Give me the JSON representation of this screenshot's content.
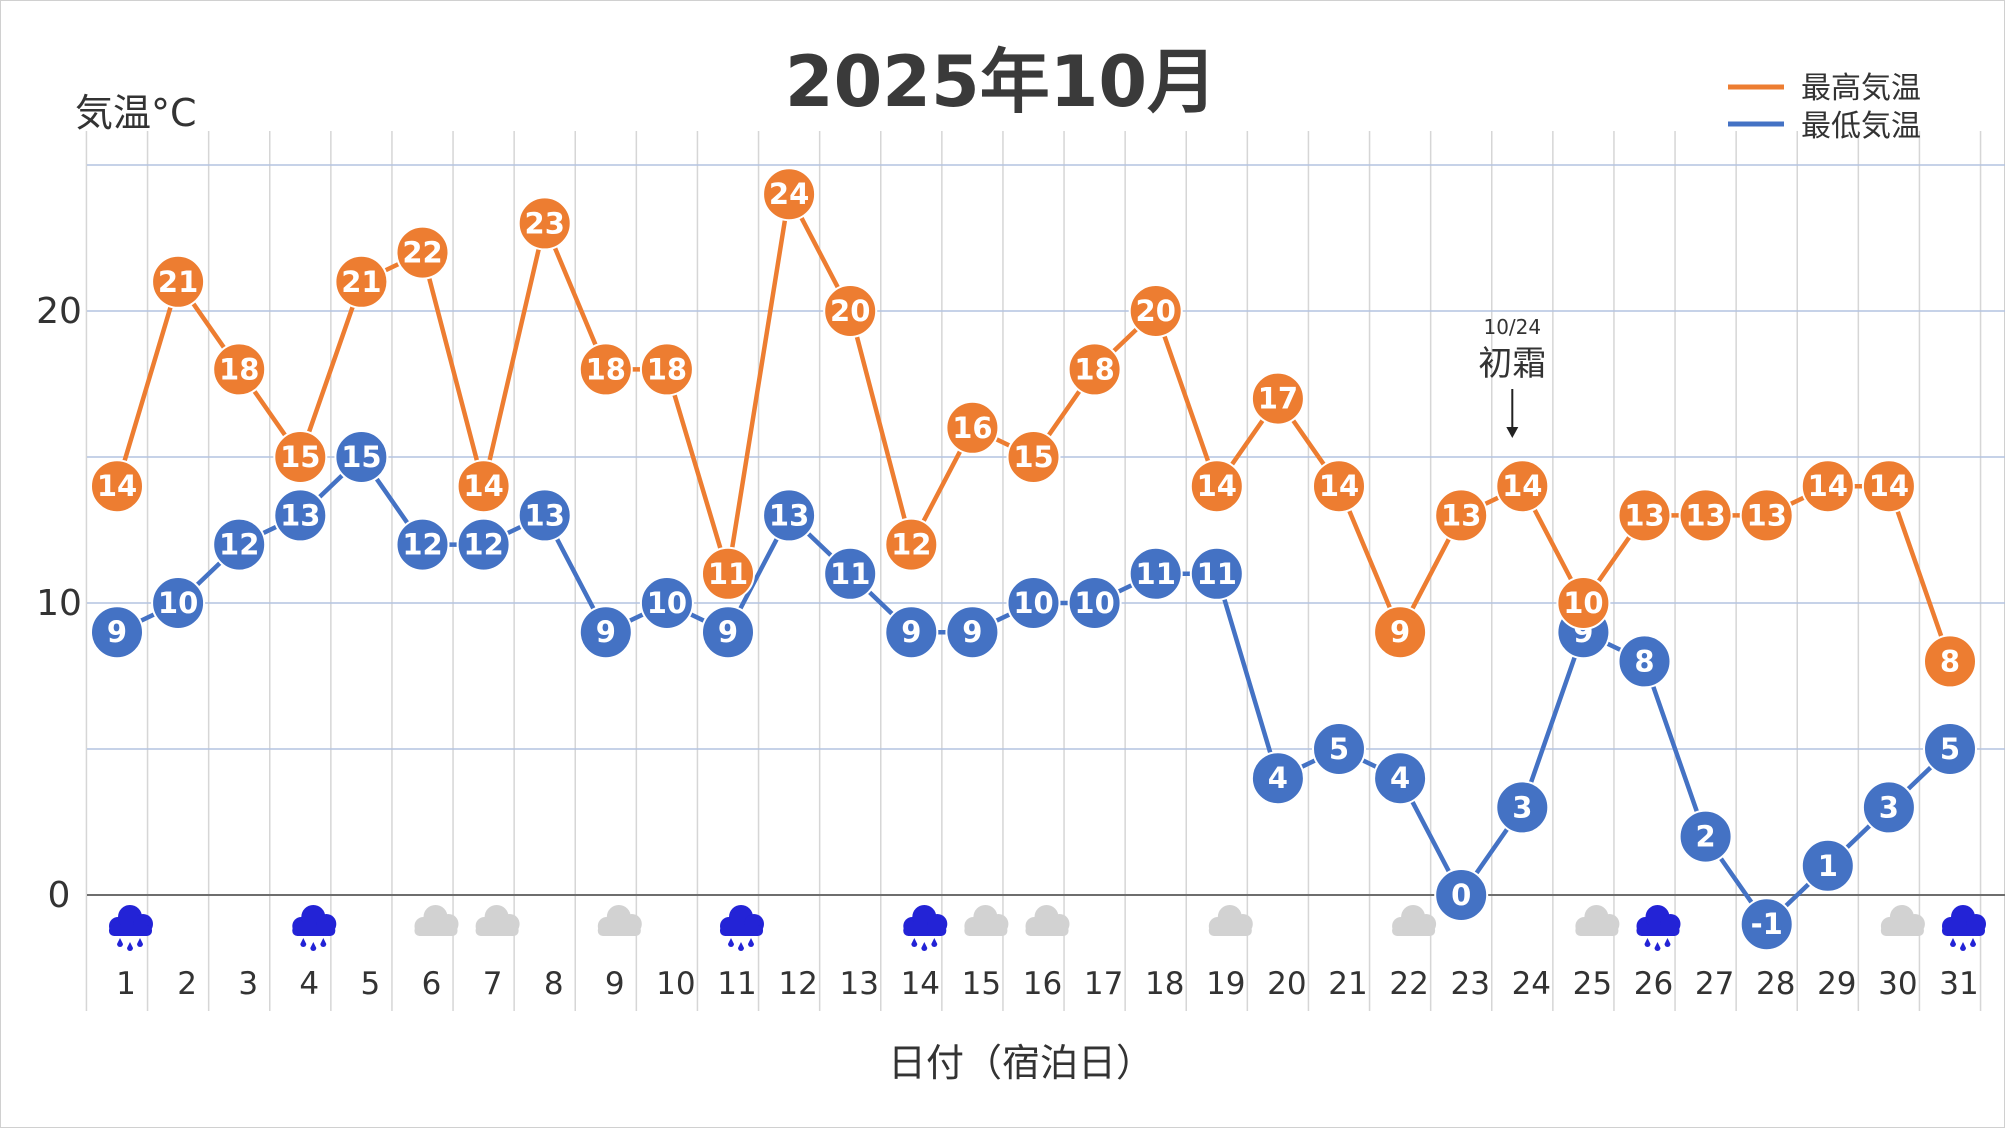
{
  "chart_data": {
    "type": "line",
    "title": "2025年10月",
    "xlabel": "日付（宿泊日）",
    "ylabel": "気温°C",
    "ylim": [
      0,
      25
    ],
    "yticks": [
      "0",
      "10",
      "20"
    ],
    "grid": true,
    "legend_position": "top-right",
    "categories": [
      "1",
      "2",
      "3",
      "4",
      "5",
      "6",
      "7",
      "8",
      "9",
      "10",
      "11",
      "12",
      "13",
      "14",
      "15",
      "16",
      "17",
      "18",
      "19",
      "20",
      "21",
      "22",
      "23",
      "24",
      "25",
      "26",
      "27",
      "28",
      "29",
      "30",
      "31"
    ],
    "series": [
      {
        "name": "最高気温",
        "color": "#ed7d31",
        "values": [
          14,
          21,
          18,
          15,
          21,
          22,
          14,
          23,
          18,
          18,
          11,
          24,
          20,
          12,
          16,
          15,
          18,
          20,
          14,
          17,
          14,
          9,
          13,
          14,
          10,
          13,
          13,
          13,
          14,
          14,
          8
        ]
      },
      {
        "name": "最低気温",
        "color": "#4472c4",
        "values": [
          9,
          10,
          12,
          13,
          15,
          12,
          12,
          13,
          9,
          10,
          9,
          13,
          11,
          9,
          9,
          10,
          10,
          11,
          11,
          4,
          5,
          4,
          0,
          3,
          9,
          8,
          2,
          -1,
          1,
          3,
          5
        ]
      }
    ],
    "weather_icons": [
      "rain-icon",
      "",
      "",
      "rain-icon",
      "",
      "cloud-icon",
      "cloud-icon",
      "",
      "cloud-icon",
      "",
      "rain-icon",
      "",
      "",
      "rain-icon",
      "cloud-icon",
      "cloud-icon",
      "",
      "",
      "cloud-icon",
      "",
      "",
      "cloud-icon",
      "",
      "",
      "cloud-icon",
      "rain-icon",
      "",
      "",
      "",
      "cloud-icon",
      "rain-icon"
    ],
    "annotations": [
      {
        "category": "24",
        "date_text": "10/24",
        "text": "初霜"
      }
    ]
  }
}
